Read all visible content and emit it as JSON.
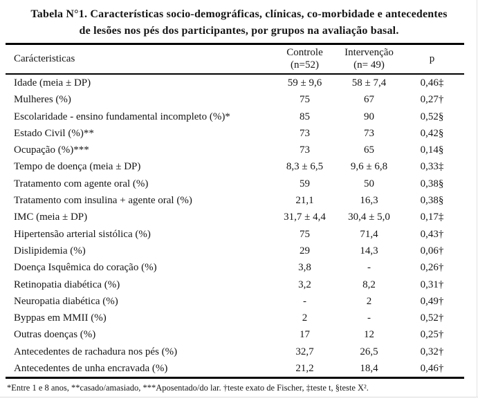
{
  "title": {
    "line1": "Tabela N°1. Características socio-demográficas, clínicas, co-morbidade e antecedentes",
    "line2": "de lesões nos pés dos participantes, por grupos na avaliação basal."
  },
  "table": {
    "header": {
      "characteristics": "Carácteristicas",
      "controle_line1": "Controle",
      "controle_line2": "(n=52)",
      "intervencao_line1": "Intervenção",
      "intervencao_line2": "(n= 49)",
      "p": "p"
    },
    "rows": [
      {
        "label": "Idade (meia ± DP)",
        "controle": "59 ± 9,6",
        "intervencao": "58 ± 7,4",
        "p": "0,46‡"
      },
      {
        "label": "Mulheres (%)",
        "controle": "75",
        "intervencao": "67",
        "p": "0,27†"
      },
      {
        "label": "Escolaridade - ensino fundamental incompleto (%)*",
        "controle": "85",
        "intervencao": "90",
        "p": "0,52§"
      },
      {
        "label": "Estado Civil (%)**",
        "controle": "73",
        "intervencao": "73",
        "p": "0,42§"
      },
      {
        "label": "Ocupação (%)***",
        "controle": "73",
        "intervencao": "65",
        "p": "0,14§"
      },
      {
        "label": "Tempo de doença (meia ± DP)",
        "controle": "8,3 ± 6,5",
        "intervencao": "9,6 ± 6,8",
        "p": "0,33‡"
      },
      {
        "label": "Tratamento com agente oral (%)",
        "controle": "59",
        "intervencao": "50",
        "p": "0,38§"
      },
      {
        "label": "Tratamento com insulina + agente oral (%)",
        "controle": "21,1",
        "intervencao": "16,3",
        "p": "0,38§"
      },
      {
        "label": "IMC (meia ± DP)",
        "controle": "31,7 ± 4,4",
        "intervencao": "30,4 ± 5,0",
        "p": "0,17‡"
      },
      {
        "label": "Hipertensão arterial sistólica  (%)",
        "controle": "75",
        "intervencao": "71,4",
        "p": "0,43†"
      },
      {
        "label": "Dislipidemia (%)",
        "controle": "29",
        "intervencao": "14,3",
        "p": "0,06†"
      },
      {
        "label": "Doença Isquêmica do coração (%)",
        "controle": "3,8",
        "intervencao": "-",
        "p": "0,26†"
      },
      {
        "label": "Retinopatia diabética (%)",
        "controle": "3,2",
        "intervencao": "8,2",
        "p": "0,31†"
      },
      {
        "label": "Neuropatia diabética (%)",
        "controle": "-",
        "intervencao": "2",
        "p": "0,49†"
      },
      {
        "label": "Byppas em MMII (%)",
        "controle": "2",
        "intervencao": "-",
        "p": "0,52†"
      },
      {
        "label": "Outras doenças (%)",
        "controle": "17",
        "intervencao": "12",
        "p": "0,25†"
      },
      {
        "label": "Antecedentes de rachadura nos pés (%)",
        "controle": "32,7",
        "intervencao": "26,5",
        "p": "0,32†"
      },
      {
        "label": "Antecedentes de unha encravada (%)",
        "controle": "21,2",
        "intervencao": "18,4",
        "p": "0,46†"
      }
    ]
  },
  "footnote": "*Entre 1 e 8 anos, **casado/amasiado, ***Aposentado/do lar. †teste exato de Fischer, ‡teste t, §teste X²."
}
